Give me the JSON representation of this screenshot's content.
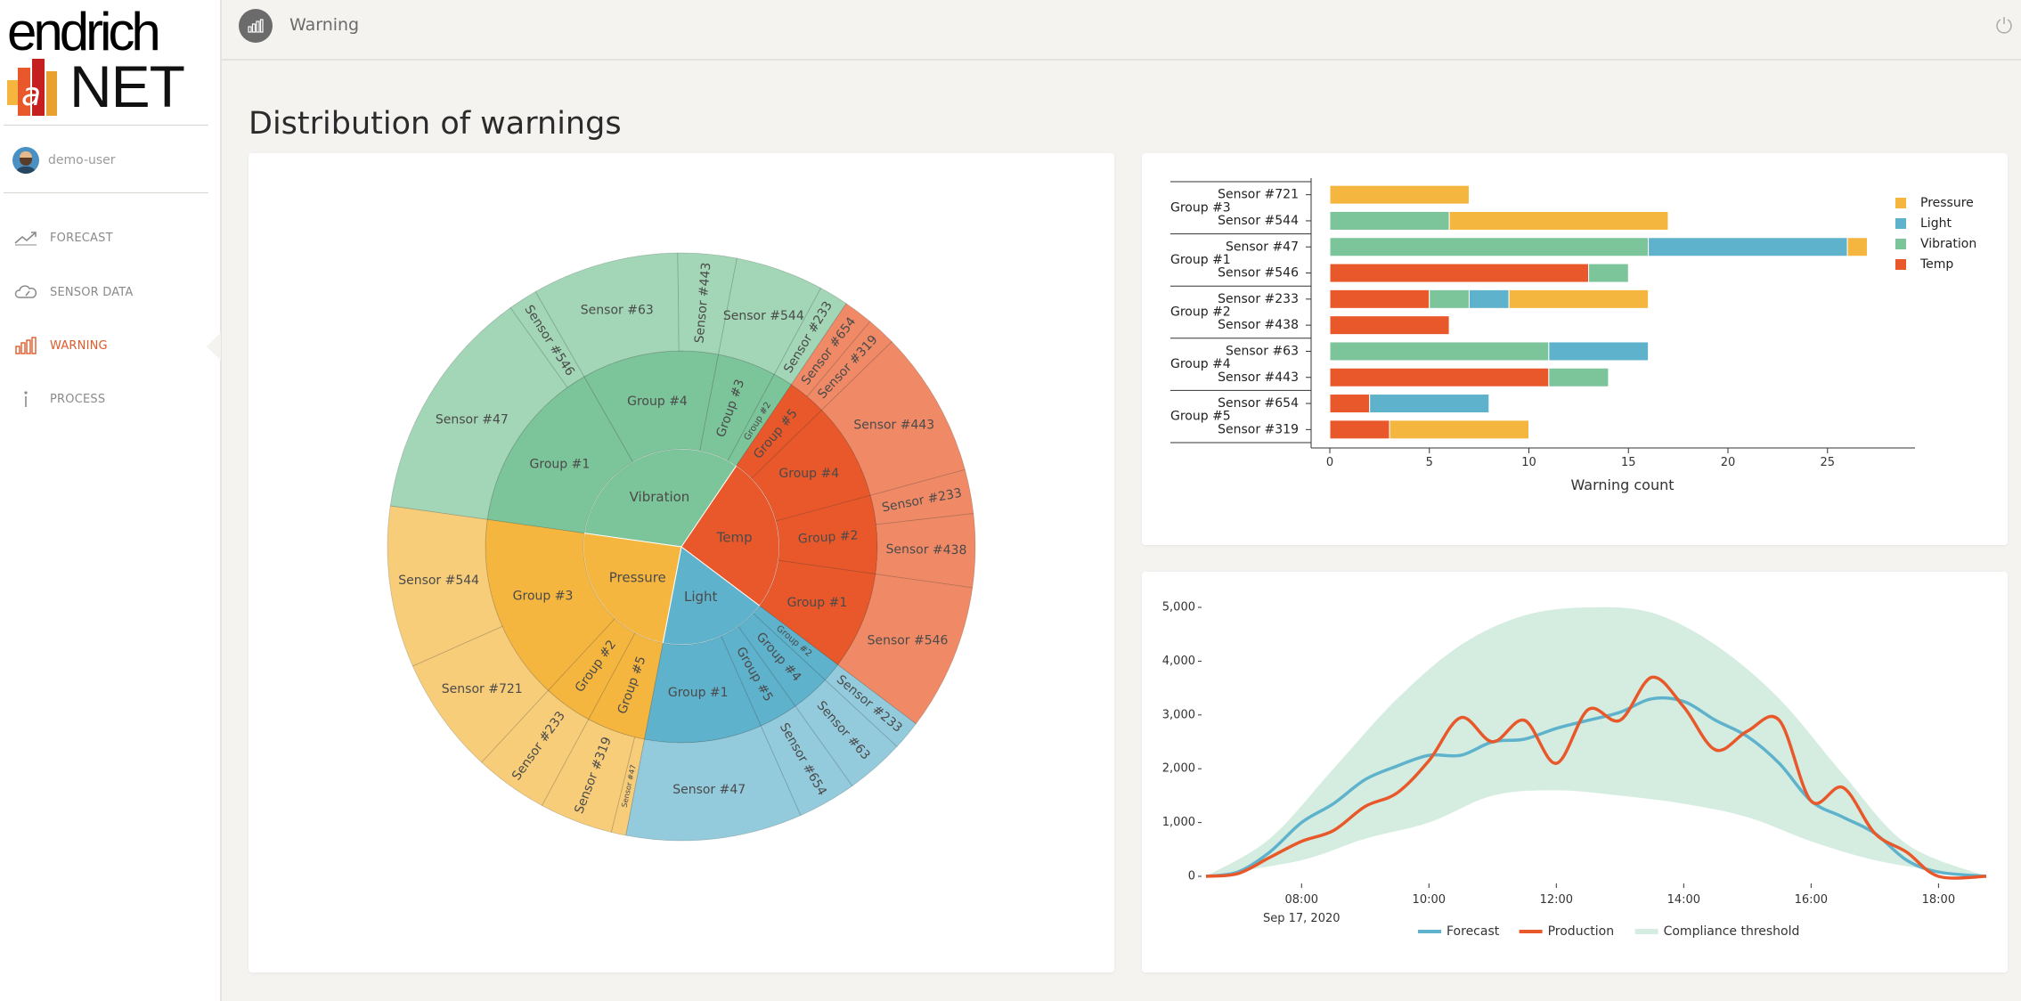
{
  "app": {
    "logo_top": "endrich",
    "logo_bottom": "NET",
    "user": "demo-user"
  },
  "nav": [
    {
      "label": "FORECAST",
      "icon": "trend-line-icon"
    },
    {
      "label": "SENSOR DATA",
      "icon": "cloud-gauge-icon"
    },
    {
      "label": "WARNING",
      "icon": "bar-chart-icon",
      "active": true
    },
    {
      "label": "PROCESS",
      "icon": "info-icon"
    }
  ],
  "header": {
    "title": "Warning",
    "icon": "bar-chart-icon",
    "power_icon": "power-icon"
  },
  "page_title": "Distribution of warnings",
  "colors": {
    "Pressure": "#f5b640",
    "Light": "#5fb2cc",
    "Vibration": "#7cc49a",
    "Temp": "#e8582a",
    "Forecast": "#5fb2cc",
    "Production": "#e8582a",
    "Compliance threshold": "#d4ede0",
    "accent": "#e05a2a"
  },
  "chart_data": [
    {
      "type": "sunburst",
      "rings": [
        {
          "name": "Vibration",
          "value": 20,
          "children": [
            {
              "name": "Group #1",
              "value": 9,
              "children": [
                {
                  "name": "Sensor #47",
                  "value": 8
                },
                {
                  "name": "Sensor #546",
                  "value": 1
                }
              ]
            },
            {
              "name": "Group #4",
              "value": 7,
              "children": [
                {
                  "name": "Sensor #63",
                  "value": 5
                },
                {
                  "name": "Sensor #443",
                  "value": 2
                }
              ]
            },
            {
              "name": "Group #3",
              "value": 3,
              "children": [
                {
                  "name": "Sensor #544",
                  "value": 3
                }
              ]
            },
            {
              "name": "Group #2",
              "value": 1,
              "children": [
                {
                  "name": "Sensor #233",
                  "value": 1
                }
              ]
            }
          ]
        },
        {
          "name": "Temp",
          "value": 16,
          "children": [
            {
              "name": "Group #5",
              "value": 2,
              "children": [
                {
                  "name": "Sensor #654",
                  "value": 1
                },
                {
                  "name": "Sensor #319",
                  "value": 1
                }
              ]
            },
            {
              "name": "Group #4",
              "value": 5,
              "children": [
                {
                  "name": "Sensor #443",
                  "value": 5
                }
              ]
            },
            {
              "name": "Group #2",
              "value": 4,
              "children": [
                {
                  "name": "Sensor #233",
                  "value": 1.5
                },
                {
                  "name": "Sensor #438",
                  "value": 2.5
                }
              ]
            },
            {
              "name": "Group #1",
              "value": 5,
              "children": [
                {
                  "name": "Sensor #546",
                  "value": 5
                }
              ]
            }
          ]
        },
        {
          "name": "Light",
          "value": 11,
          "children": [
            {
              "name": "Group #2",
              "value": 1,
              "children": [
                {
                  "name": "Sensor #233",
                  "value": 1
                }
              ]
            },
            {
              "name": "Group #4",
              "value": 2,
              "children": [
                {
                  "name": "Sensor #63",
                  "value": 2
                }
              ]
            },
            {
              "name": "Group #5",
              "value": 2,
              "children": [
                {
                  "name": "Sensor #654",
                  "value": 2
                }
              ]
            },
            {
              "name": "Group #1",
              "value": 6,
              "children": [
                {
                  "name": "Sensor #47",
                  "value": 6
                }
              ]
            }
          ]
        },
        {
          "name": "Pressure",
          "value": 15,
          "children": [
            {
              "name": "Group #5",
              "value": 3,
              "children": [
                {
                  "name": "Sensor #47",
                  "value": 0.5
                },
                {
                  "name": "Sensor #319",
                  "value": 2.5
                }
              ]
            },
            {
              "name": "Group #2",
              "value": 2.5,
              "children": [
                {
                  "name": "Sensor #233",
                  "value": 2.5
                }
              ]
            },
            {
              "name": "Group #3",
              "value": 9.5,
              "children": [
                {
                  "name": "Sensor #721",
                  "value": 4
                },
                {
                  "name": "Sensor #544",
                  "value": 5.5
                }
              ]
            }
          ]
        }
      ],
      "extra_labels": [
        "Sensor #"
      ]
    },
    {
      "type": "bar",
      "orientation": "horizontal",
      "stacked": true,
      "groups": [
        {
          "name": "Group #3",
          "sensors": [
            "Sensor #721",
            "Sensor #544"
          ]
        },
        {
          "name": "Group #1",
          "sensors": [
            "Sensor #47",
            "Sensor #546"
          ]
        },
        {
          "name": "Group #2",
          "sensors": [
            "Sensor #233",
            "Sensor #438"
          ]
        },
        {
          "name": "Group #4",
          "sensors": [
            "Sensor #63",
            "Sensor #443"
          ]
        },
        {
          "name": "Group #5",
          "sensors": [
            "Sensor #654",
            "Sensor #319"
          ]
        }
      ],
      "rows": [
        {
          "sensor": "Sensor #721",
          "segments": [
            {
              "series": "Pressure",
              "value": 7
            }
          ]
        },
        {
          "sensor": "Sensor #544",
          "segments": [
            {
              "series": "Vibration",
              "value": 6
            },
            {
              "series": "Pressure",
              "value": 11
            }
          ]
        },
        {
          "sensor": "Sensor #47",
          "segments": [
            {
              "series": "Vibration",
              "value": 16
            },
            {
              "series": "Light",
              "value": 10
            },
            {
              "series": "Pressure",
              "value": 1
            }
          ]
        },
        {
          "sensor": "Sensor #546",
          "segments": [
            {
              "series": "Temp",
              "value": 13
            },
            {
              "series": "Vibration",
              "value": 2
            }
          ]
        },
        {
          "sensor": "Sensor #233",
          "segments": [
            {
              "series": "Temp",
              "value": 5
            },
            {
              "series": "Vibration",
              "value": 2
            },
            {
              "series": "Light",
              "value": 2
            },
            {
              "series": "Pressure",
              "value": 7
            }
          ]
        },
        {
          "sensor": "Sensor #438",
          "segments": [
            {
              "series": "Temp",
              "value": 6
            }
          ]
        },
        {
          "sensor": "Sensor #63",
          "segments": [
            {
              "series": "Vibration",
              "value": 11
            },
            {
              "series": "Light",
              "value": 5
            }
          ]
        },
        {
          "sensor": "Sensor #443",
          "segments": [
            {
              "series": "Temp",
              "value": 11
            },
            {
              "series": "Vibration",
              "value": 3
            }
          ]
        },
        {
          "sensor": "Sensor #654",
          "segments": [
            {
              "series": "Temp",
              "value": 2
            },
            {
              "series": "Light",
              "value": 6
            }
          ]
        },
        {
          "sensor": "Sensor #319",
          "segments": [
            {
              "series": "Temp",
              "value": 3
            },
            {
              "series": "Pressure",
              "value": 7
            }
          ]
        }
      ],
      "legend": [
        "Pressure",
        "Light",
        "Vibration",
        "Temp"
      ],
      "legend_position": "top-right",
      "xlabel": "Warning count",
      "xlim": [
        0,
        28.5
      ],
      "xticks": [
        0,
        5,
        10,
        15,
        20,
        25
      ]
    },
    {
      "type": "line",
      "x_start": "06:30",
      "x_end": "18:45",
      "xticks": [
        "08:00",
        "10:00",
        "12:00",
        "14:00",
        "16:00",
        "18:00"
      ],
      "x_date_label": "Sep 17, 2020",
      "ylim": [
        0,
        5000
      ],
      "yticks": [
        "5,000",
        "4,000",
        "3,000",
        "2,000",
        "1,000",
        "0"
      ],
      "ytick_values": [
        5000,
        4000,
        3000,
        2000,
        1000,
        0
      ],
      "series": [
        {
          "name": "Forecast",
          "type": "line",
          "points": [
            [
              "06:30",
              0
            ],
            [
              "07:00",
              80
            ],
            [
              "07:30",
              450
            ],
            [
              "08:00",
              1000
            ],
            [
              "08:30",
              1350
            ],
            [
              "09:00",
              1800
            ],
            [
              "09:30",
              2050
            ],
            [
              "10:00",
              2250
            ],
            [
              "10:30",
              2250
            ],
            [
              "11:00",
              2500
            ],
            [
              "11:30",
              2550
            ],
            [
              "12:00",
              2750
            ],
            [
              "12:30",
              2900
            ],
            [
              "13:00",
              3050
            ],
            [
              "13:30",
              3300
            ],
            [
              "14:00",
              3250
            ],
            [
              "14:30",
              2900
            ],
            [
              "15:00",
              2600
            ],
            [
              "15:30",
              2100
            ],
            [
              "16:00",
              1400
            ],
            [
              "16:30",
              1100
            ],
            [
              "17:00",
              800
            ],
            [
              "17:30",
              300
            ],
            [
              "18:00",
              80
            ],
            [
              "18:45",
              0
            ]
          ]
        },
        {
          "name": "Production",
          "type": "line",
          "points": [
            [
              "06:30",
              0
            ],
            [
              "07:00",
              50
            ],
            [
              "07:30",
              350
            ],
            [
              "08:00",
              650
            ],
            [
              "08:30",
              850
            ],
            [
              "09:00",
              1300
            ],
            [
              "09:30",
              1550
            ],
            [
              "10:00",
              2150
            ],
            [
              "10:30",
              2950
            ],
            [
              "11:00",
              2500
            ],
            [
              "11:30",
              2900
            ],
            [
              "12:00",
              2100
            ],
            [
              "12:30",
              3100
            ],
            [
              "13:00",
              2900
            ],
            [
              "13:30",
              3700
            ],
            [
              "14:00",
              3150
            ],
            [
              "14:30",
              2350
            ],
            [
              "15:00",
              2700
            ],
            [
              "15:30",
              2900
            ],
            [
              "16:00",
              1400
            ],
            [
              "16:30",
              1650
            ],
            [
              "17:00",
              800
            ],
            [
              "17:30",
              450
            ],
            [
              "18:00",
              0
            ],
            [
              "18:45",
              0
            ]
          ]
        },
        {
          "name": "Compliance threshold",
          "type": "band",
          "lower": [
            [
              "06:30",
              0
            ],
            [
              "08:00",
              300
            ],
            [
              "09:00",
              700
            ],
            [
              "10:00",
              1000
            ],
            [
              "11:00",
              1500
            ],
            [
              "12:00",
              1600
            ],
            [
              "13:00",
              1500
            ],
            [
              "14:00",
              1350
            ],
            [
              "15:00",
              1100
            ],
            [
              "16:00",
              650
            ],
            [
              "17:00",
              300
            ],
            [
              "18:00",
              100
            ],
            [
              "18:45",
              0
            ]
          ],
          "upper": [
            [
              "06:30",
              0
            ],
            [
              "07:30",
              700
            ],
            [
              "08:30",
              2000
            ],
            [
              "09:30",
              3300
            ],
            [
              "10:30",
              4300
            ],
            [
              "11:30",
              4850
            ],
            [
              "12:30",
              5000
            ],
            [
              "13:30",
              4900
            ],
            [
              "14:30",
              4300
            ],
            [
              "15:30",
              3300
            ],
            [
              "16:30",
              1900
            ],
            [
              "17:30",
              600
            ],
            [
              "18:45",
              0
            ]
          ]
        }
      ],
      "legend": [
        "Forecast",
        "Production",
        "Compliance threshold"
      ],
      "legend_position": "bottom"
    }
  ]
}
